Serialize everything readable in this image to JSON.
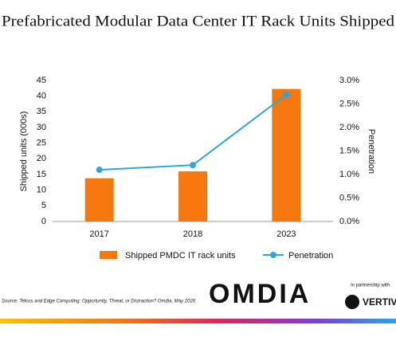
{
  "chart_data": {
    "type": "bar_line",
    "title": "Prefabricated Modular Data Center IT Rack Units Shipped",
    "y_label": "Shipped units (000s)",
    "y2_label": "Penetration",
    "categories": [
      "2017",
      "2018",
      "2023"
    ],
    "series": [
      {
        "name": "Shipped PMDC IT rack units",
        "color": "#f5780f",
        "type": "bar",
        "values": [
          13.8,
          16,
          42.3
        ]
      },
      {
        "name": "Penetration",
        "color": "#2fa4de",
        "type": "line",
        "axis": "y2",
        "values": [
          1.1,
          1.2,
          2.7
        ]
      }
    ],
    "ylim": [
      0,
      45
    ],
    "yticks": [
      0,
      5,
      10,
      15,
      20,
      25,
      30,
      35,
      40,
      45
    ],
    "y2lim": [
      0,
      3
    ],
    "y2ticks": [
      {
        "value": 0,
        "label": "0.0%"
      },
      {
        "value": 0.5,
        "label": "0.5%"
      },
      {
        "value": 1,
        "label": "1.0%"
      },
      {
        "value": 1.5,
        "label": "1.5%"
      },
      {
        "value": 2,
        "label": "2.0%"
      },
      {
        "value": 2.5,
        "label": "2.5%"
      },
      {
        "value": 3,
        "label": "3.0%"
      }
    ],
    "legend": "bottom"
  },
  "footer": {
    "source": "Source: Telcos and Edge Computing: Opportunity, Threat, or Distraction? Omdia, May 2020",
    "brand": "OMDIA",
    "partner_note": "In partnership with",
    "partner": "VERTIV"
  }
}
